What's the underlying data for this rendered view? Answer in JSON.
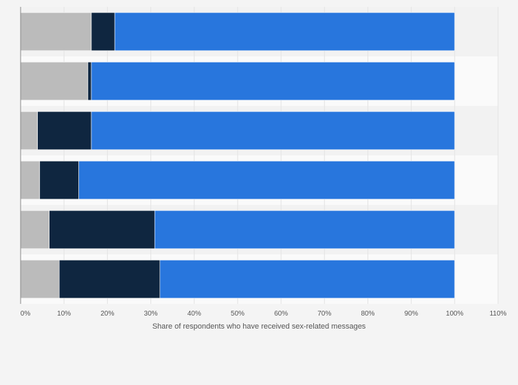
{
  "chart_data": {
    "type": "bar",
    "orientation": "horizontal",
    "stacked": true,
    "title": "",
    "xlabel": "Share of respondents who have received sex-related messages",
    "ylabel": "",
    "xlim": [
      0,
      110
    ],
    "x_ticks": [
      "0%",
      "10%",
      "20%",
      "30%",
      "40%",
      "50%",
      "60%",
      "70%",
      "80%",
      "90%",
      "100%",
      "110%"
    ],
    "categories": [
      "",
      "",
      "",
      "",
      "",
      ""
    ],
    "series": [
      {
        "color": "#bbbbbb",
        "values": [
          16.3,
          15.5,
          3.9,
          4.4,
          6.6,
          8.9
        ]
      },
      {
        "color": "#0f2640",
        "values": [
          5.4,
          0.8,
          12.4,
          9.0,
          24.3,
          23.2
        ]
      },
      {
        "color": "#2876dd",
        "values": [
          78.3,
          83.7,
          83.7,
          86.6,
          69.1,
          67.9
        ]
      }
    ],
    "grid": true,
    "legend": "none"
  }
}
